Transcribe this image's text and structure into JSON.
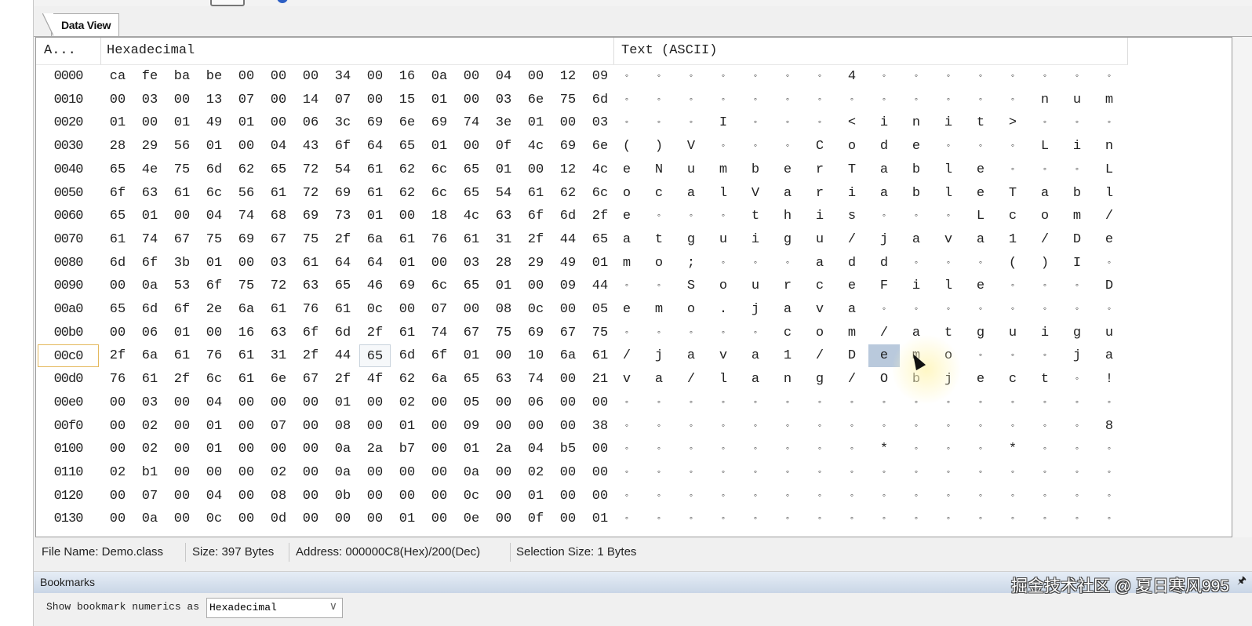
{
  "tab": {
    "label": "Data View"
  },
  "columns": {
    "address": "A...",
    "hex": "Hexadecimal",
    "text": "Text (ASCII)"
  },
  "rows": [
    {
      "addr": "0000",
      "hex": [
        "ca",
        "fe",
        "ba",
        "be",
        "00",
        "00",
        "00",
        "34",
        "00",
        "16",
        "0a",
        "00",
        "04",
        "00",
        "12",
        "09"
      ],
      "ascii": [
        "◦",
        "◦",
        "◦",
        "◦",
        "◦",
        "◦",
        "◦",
        "4",
        "◦",
        "◦",
        "◦",
        "◦",
        "◦",
        "◦",
        "◦",
        "◦"
      ]
    },
    {
      "addr": "0010",
      "hex": [
        "00",
        "03",
        "00",
        "13",
        "07",
        "00",
        "14",
        "07",
        "00",
        "15",
        "01",
        "00",
        "03",
        "6e",
        "75",
        "6d"
      ],
      "ascii": [
        "◦",
        "◦",
        "◦",
        "◦",
        "◦",
        "◦",
        "◦",
        "◦",
        "◦",
        "◦",
        "◦",
        "◦",
        "◦",
        "n",
        "u",
        "m"
      ]
    },
    {
      "addr": "0020",
      "hex": [
        "01",
        "00",
        "01",
        "49",
        "01",
        "00",
        "06",
        "3c",
        "69",
        "6e",
        "69",
        "74",
        "3e",
        "01",
        "00",
        "03"
      ],
      "ascii": [
        "◦",
        "◦",
        "◦",
        "I",
        "◦",
        "◦",
        "◦",
        "<",
        "i",
        "n",
        "i",
        "t",
        ">",
        "◦",
        "◦",
        "◦"
      ]
    },
    {
      "addr": "0030",
      "hex": [
        "28",
        "29",
        "56",
        "01",
        "00",
        "04",
        "43",
        "6f",
        "64",
        "65",
        "01",
        "00",
        "0f",
        "4c",
        "69",
        "6e"
      ],
      "ascii": [
        "(",
        ")",
        "V",
        "◦",
        "◦",
        "◦",
        "C",
        "o",
        "d",
        "e",
        "◦",
        "◦",
        "◦",
        "L",
        "i",
        "n"
      ]
    },
    {
      "addr": "0040",
      "hex": [
        "65",
        "4e",
        "75",
        "6d",
        "62",
        "65",
        "72",
        "54",
        "61",
        "62",
        "6c",
        "65",
        "01",
        "00",
        "12",
        "4c"
      ],
      "ascii": [
        "e",
        "N",
        "u",
        "m",
        "b",
        "e",
        "r",
        "T",
        "a",
        "b",
        "l",
        "e",
        "◦",
        "◦",
        "◦",
        "L"
      ]
    },
    {
      "addr": "0050",
      "hex": [
        "6f",
        "63",
        "61",
        "6c",
        "56",
        "61",
        "72",
        "69",
        "61",
        "62",
        "6c",
        "65",
        "54",
        "61",
        "62",
        "6c"
      ],
      "ascii": [
        "o",
        "c",
        "a",
        "l",
        "V",
        "a",
        "r",
        "i",
        "a",
        "b",
        "l",
        "e",
        "T",
        "a",
        "b",
        "l"
      ]
    },
    {
      "addr": "0060",
      "hex": [
        "65",
        "01",
        "00",
        "04",
        "74",
        "68",
        "69",
        "73",
        "01",
        "00",
        "18",
        "4c",
        "63",
        "6f",
        "6d",
        "2f"
      ],
      "ascii": [
        "e",
        "◦",
        "◦",
        "◦",
        "t",
        "h",
        "i",
        "s",
        "◦",
        "◦",
        "◦",
        "L",
        "c",
        "o",
        "m",
        "/"
      ]
    },
    {
      "addr": "0070",
      "hex": [
        "61",
        "74",
        "67",
        "75",
        "69",
        "67",
        "75",
        "2f",
        "6a",
        "61",
        "76",
        "61",
        "31",
        "2f",
        "44",
        "65"
      ],
      "ascii": [
        "a",
        "t",
        "g",
        "u",
        "i",
        "g",
        "u",
        "/",
        "j",
        "a",
        "v",
        "a",
        "1",
        "/",
        "D",
        "e"
      ]
    },
    {
      "addr": "0080",
      "hex": [
        "6d",
        "6f",
        "3b",
        "01",
        "00",
        "03",
        "61",
        "64",
        "64",
        "01",
        "00",
        "03",
        "28",
        "29",
        "49",
        "01"
      ],
      "ascii": [
        "m",
        "o",
        ";",
        "◦",
        "◦",
        "◦",
        "a",
        "d",
        "d",
        "◦",
        "◦",
        "◦",
        "(",
        ")",
        "I",
        "◦"
      ]
    },
    {
      "addr": "0090",
      "hex": [
        "00",
        "0a",
        "53",
        "6f",
        "75",
        "72",
        "63",
        "65",
        "46",
        "69",
        "6c",
        "65",
        "01",
        "00",
        "09",
        "44"
      ],
      "ascii": [
        "◦",
        "◦",
        "S",
        "o",
        "u",
        "r",
        "c",
        "e",
        "F",
        "i",
        "l",
        "e",
        "◦",
        "◦",
        "◦",
        "D"
      ]
    },
    {
      "addr": "00a0",
      "hex": [
        "65",
        "6d",
        "6f",
        "2e",
        "6a",
        "61",
        "76",
        "61",
        "0c",
        "00",
        "07",
        "00",
        "08",
        "0c",
        "00",
        "05"
      ],
      "ascii": [
        "e",
        "m",
        "o",
        ".",
        "j",
        "a",
        "v",
        "a",
        "◦",
        "◦",
        "◦",
        "◦",
        "◦",
        "◦",
        "◦",
        "◦"
      ]
    },
    {
      "addr": "00b0",
      "hex": [
        "00",
        "06",
        "01",
        "00",
        "16",
        "63",
        "6f",
        "6d",
        "2f",
        "61",
        "74",
        "67",
        "75",
        "69",
        "67",
        "75"
      ],
      "ascii": [
        "◦",
        "◦",
        "◦",
        "◦",
        "◦",
        "c",
        "o",
        "m",
        "/",
        "a",
        "t",
        "g",
        "u",
        "i",
        "g",
        "u"
      ]
    },
    {
      "addr": "00c0",
      "hex": [
        "2f",
        "6a",
        "61",
        "76",
        "61",
        "31",
        "2f",
        "44",
        "65",
        "6d",
        "6f",
        "01",
        "00",
        "10",
        "6a",
        "61"
      ],
      "ascii": [
        "/",
        "j",
        "a",
        "v",
        "a",
        "1",
        "/",
        "D",
        "e",
        "m",
        "o",
        "◦",
        "◦",
        "◦",
        "j",
        "a"
      ]
    },
    {
      "addr": "00d0",
      "hex": [
        "76",
        "61",
        "2f",
        "6c",
        "61",
        "6e",
        "67",
        "2f",
        "4f",
        "62",
        "6a",
        "65",
        "63",
        "74",
        "00",
        "21"
      ],
      "ascii": [
        "v",
        "a",
        "/",
        "l",
        "a",
        "n",
        "g",
        "/",
        "O",
        "b",
        "j",
        "e",
        "c",
        "t",
        "◦",
        "!"
      ]
    },
    {
      "addr": "00e0",
      "hex": [
        "00",
        "03",
        "00",
        "04",
        "00",
        "00",
        "00",
        "01",
        "00",
        "02",
        "00",
        "05",
        "00",
        "06",
        "00",
        "00"
      ],
      "ascii": [
        "◦",
        "◦",
        "◦",
        "◦",
        "◦",
        "◦",
        "◦",
        "◦",
        "◦",
        "◦",
        "◦",
        "◦",
        "◦",
        "◦",
        "◦",
        "◦"
      ]
    },
    {
      "addr": "00f0",
      "hex": [
        "00",
        "02",
        "00",
        "01",
        "00",
        "07",
        "00",
        "08",
        "00",
        "01",
        "00",
        "09",
        "00",
        "00",
        "00",
        "38"
      ],
      "ascii": [
        "◦",
        "◦",
        "◦",
        "◦",
        "◦",
        "◦",
        "◦",
        "◦",
        "◦",
        "◦",
        "◦",
        "◦",
        "◦",
        "◦",
        "◦",
        "8"
      ]
    },
    {
      "addr": "0100",
      "hex": [
        "00",
        "02",
        "00",
        "01",
        "00",
        "00",
        "00",
        "0a",
        "2a",
        "b7",
        "00",
        "01",
        "2a",
        "04",
        "b5",
        "00"
      ],
      "ascii": [
        "◦",
        "◦",
        "◦",
        "◦",
        "◦",
        "◦",
        "◦",
        "◦",
        "*",
        "◦",
        "◦",
        "◦",
        "*",
        "◦",
        "◦",
        "◦"
      ]
    },
    {
      "addr": "0110",
      "hex": [
        "02",
        "b1",
        "00",
        "00",
        "00",
        "02",
        "00",
        "0a",
        "00",
        "00",
        "00",
        "0a",
        "00",
        "02",
        "00",
        "00"
      ],
      "ascii": [
        "◦",
        "◦",
        "◦",
        "◦",
        "◦",
        "◦",
        "◦",
        "◦",
        "◦",
        "◦",
        "◦",
        "◦",
        "◦",
        "◦",
        "◦",
        "◦"
      ]
    },
    {
      "addr": "0120",
      "hex": [
        "00",
        "07",
        "00",
        "04",
        "00",
        "08",
        "00",
        "0b",
        "00",
        "00",
        "00",
        "0c",
        "00",
        "01",
        "00",
        "00"
      ],
      "ascii": [
        "◦",
        "◦",
        "◦",
        "◦",
        "◦",
        "◦",
        "◦",
        "◦",
        "◦",
        "◦",
        "◦",
        "◦",
        "◦",
        "◦",
        "◦",
        "◦"
      ]
    },
    {
      "addr": "0130",
      "hex": [
        "00",
        "0a",
        "00",
        "0c",
        "00",
        "0d",
        "00",
        "00",
        "00",
        "01",
        "00",
        "0e",
        "00",
        "0f",
        "00",
        "01"
      ],
      "ascii": [
        "◦",
        "◦",
        "◦",
        "◦",
        "◦",
        "◦",
        "◦",
        "◦",
        "◦",
        "◦",
        "◦",
        "◦",
        "◦",
        "◦",
        "◦",
        "◦"
      ]
    }
  ],
  "selection": {
    "row_addr": "00c0",
    "column": 8
  },
  "status": {
    "file_name": "File Name: Demo.class",
    "size": "Size: 397 Bytes",
    "address": "Address: 000000C8(Hex)/200(Dec)",
    "selection_size": "Selection Size: 1 Bytes"
  },
  "bookmarks": {
    "title": "Bookmarks",
    "numerics_label": "Show bookmark numerics as",
    "numerics_value": "Hexadecimal",
    "pin_icon": "pin-icon"
  },
  "watermark": "掘金技术社区 @ 夏日寒风995",
  "colors": {
    "selection_highlight": "#b9c9dc",
    "address_selected_border": "#e4b85c",
    "bookmarks_bar": "#c9d6e6"
  }
}
